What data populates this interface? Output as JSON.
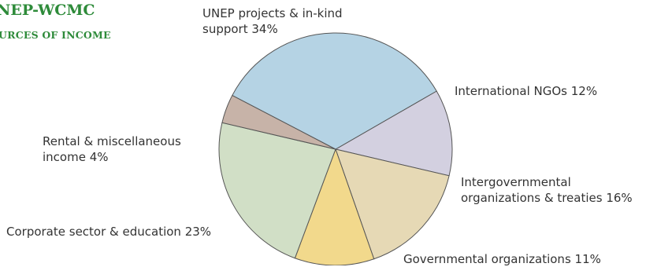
{
  "header": {
    "title": "NEP-WCMC",
    "subtitle": "URCES OF INCOME"
  },
  "chart_data": {
    "type": "pie",
    "slices": [
      {
        "name": "UNEP projects & in-kind support",
        "value": 34,
        "color": "#b5d3e4",
        "label_lines": [
          "UNEP projects & in-kind",
          "support 34%"
        ]
      },
      {
        "name": "International NGOs",
        "value": 12,
        "color": "#d3d0e0",
        "label_lines": [
          "International NGOs 12%"
        ]
      },
      {
        "name": "Intergovernmental organizations & treaties",
        "value": 16,
        "color": "#e6d9b5",
        "label_lines": [
          "Intergovernmental",
          "organizations & treaties 16%"
        ]
      },
      {
        "name": "Governmental organizations",
        "value": 11,
        "color": "#f2d98c",
        "label_lines": [
          "Governmental organizations 11%"
        ]
      },
      {
        "name": "Corporate sector & education",
        "value": 23,
        "color": "#d1dfc6",
        "label_lines": [
          "Corporate sector & education 23%"
        ]
      },
      {
        "name": "Rental & miscellaneous income",
        "value": 4,
        "color": "#c7b3a8",
        "label_lines": [
          "Rental & miscellaneous",
          "income 4%"
        ]
      }
    ]
  }
}
